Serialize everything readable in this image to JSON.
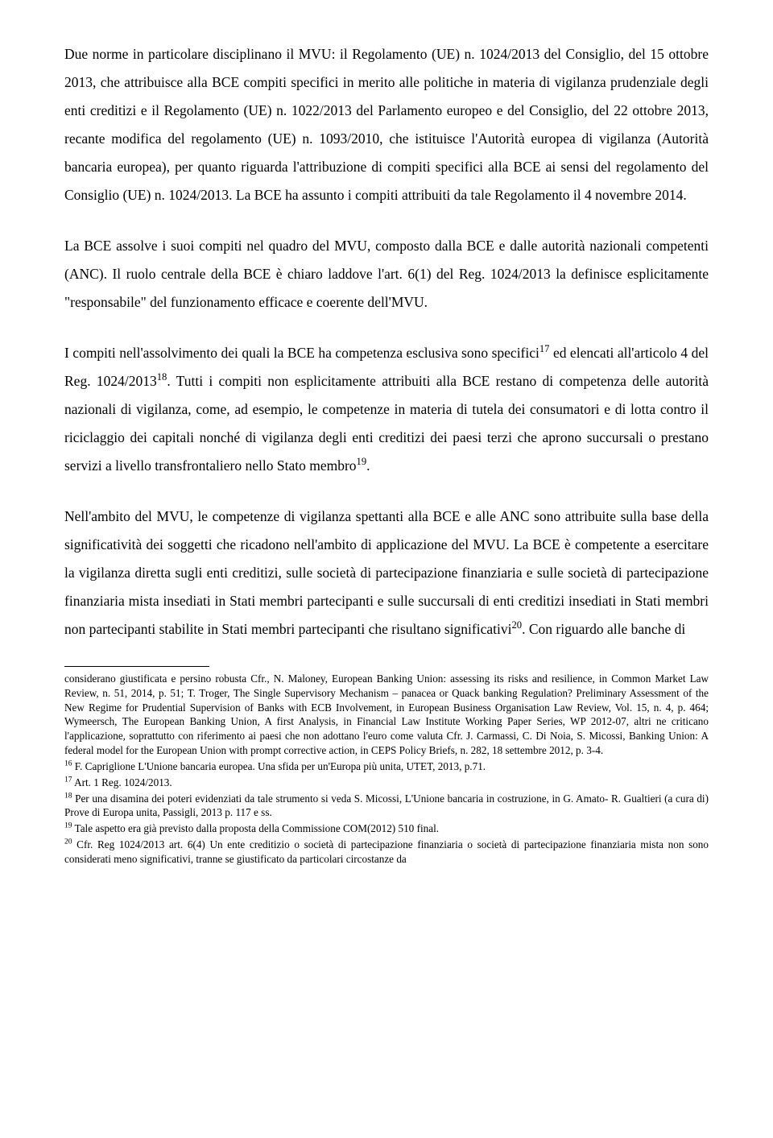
{
  "body": {
    "p1": "Due norme in particolare disciplinano il MVU: il Regolamento (UE) n. 1024/2013 del Consiglio, del 15 ottobre 2013, che attribuisce alla BCE compiti specifici in merito alle politiche in materia di vigilanza prudenziale degli enti creditizi e il Regolamento (UE) n. 1022/2013 del Parlamento europeo e del Consiglio, del 22 ottobre 2013, recante modifica del regolamento (UE) n. 1093/2010, che istituisce l'Autorità europea di vigilanza (Autorità bancaria europea), per quanto riguarda l'attribuzione di compiti specifici alla BCE ai sensi del regolamento del Consiglio (UE) n. 1024/2013. La BCE ha assunto i compiti attribuiti da tale Regolamento il 4 novembre 2014.",
    "p2": "La BCE assolve i suoi compiti nel quadro del MVU, composto dalla BCE e dalle autorità nazionali competenti (ANC). Il ruolo centrale della BCE è chiaro laddove l'art. 6(1) del Reg. 1024/2013 la definisce esplicitamente \"responsabile\" del funzionamento efficace e coerente dell'MVU.",
    "p3_a": "I compiti nell'assolvimento dei quali la BCE ha competenza esclusiva sono specifici",
    "p3_b": " ed elencati all'articolo 4 del Reg. 1024/2013",
    "p3_c": ". Tutti i compiti non esplicitamente attribuiti alla BCE restano di competenza delle autorità nazionali di vigilanza, come, ad esempio, le competenze in materia di tutela dei consumatori e di lotta contro il riciclaggio dei capitali nonché di vigilanza degli enti creditizi dei paesi terzi che aprono succursali o prestano servizi a livello transfrontaliero nello Stato membro",
    "p3_d": ".",
    "p4_a": "Nell'ambito del MVU, le competenze di vigilanza spettanti alla BCE e alle ANC sono attribuite sulla base della significatività dei soggetti che ricadono nell'ambito di applicazione del MVU. La BCE è competente a esercitare la vigilanza diretta sugli enti creditizi, sulle società di partecipazione finanziaria e sulle società di partecipazione finanziaria mista insediati in Stati membri partecipanti e sulle succursali di enti creditizi insediati in Stati membri non partecipanti stabilite in Stati membri partecipanti che risultano significativi",
    "p4_b": ". Con riguardo alle banche di"
  },
  "sup": {
    "n17": "17",
    "n18": "18",
    "n19": "19",
    "n20": "20"
  },
  "footnotes": {
    "cont": "considerano giustificata e persino robusta Cfr., N. Maloney, European Banking Union: assessing its risks and resilience, in Common Market Law Review, n. 51, 2014, p. 51; T. Troger, The Single Supervisory Mechanism – panacea or Quack banking Regulation? Preliminary Assessment of the New Regime for Prudential Supervision of Banks with ECB Involvement, in European Business Organisation Law Review, Vol. 15, n. 4, p. 464; Wymeersch, The European Banking Union, A first Analysis, in Financial Law Institute Working Paper Series, WP 2012-07, altri ne criticano l'applicazione, soprattutto con riferimento ai paesi che non adottano l'euro come valuta Cfr. J. Carmassi, C. Di Noia, S. Micossi, Banking Union: A federal model for the European Union with prompt corrective action, in CEPS Policy Briefs, n. 282, 18 settembre 2012, p. 3-4.",
    "f16_n": "16",
    "f16": " F. Capriglione L'Unione bancaria europea. Una sfida per un'Europa più unita, UTET, 2013, p.71.",
    "f17_n": "17",
    "f17": " Art. 1 Reg. 1024/2013.",
    "f18_n": "18",
    "f18": " Per una disamina dei poteri evidenziati da tale strumento si veda S. Micossi, L'Unione bancaria in costruzione, in G. Amato- R. Gualtieri (a cura di) Prove di Europa unita, Passigli, 2013 p. 117 e ss.",
    "f19_n": "19",
    "f19": " Tale aspetto era già previsto dalla proposta della Commissione COM(2012) 510 final.",
    "f20_n": "20",
    "f20": " Cfr. Reg 1024/2013 art. 6(4) Un ente creditizio o società di partecipazione finanziaria o società di partecipazione finanziaria mista non sono considerati meno significativi, tranne se giustificato da particolari circostanze da"
  }
}
